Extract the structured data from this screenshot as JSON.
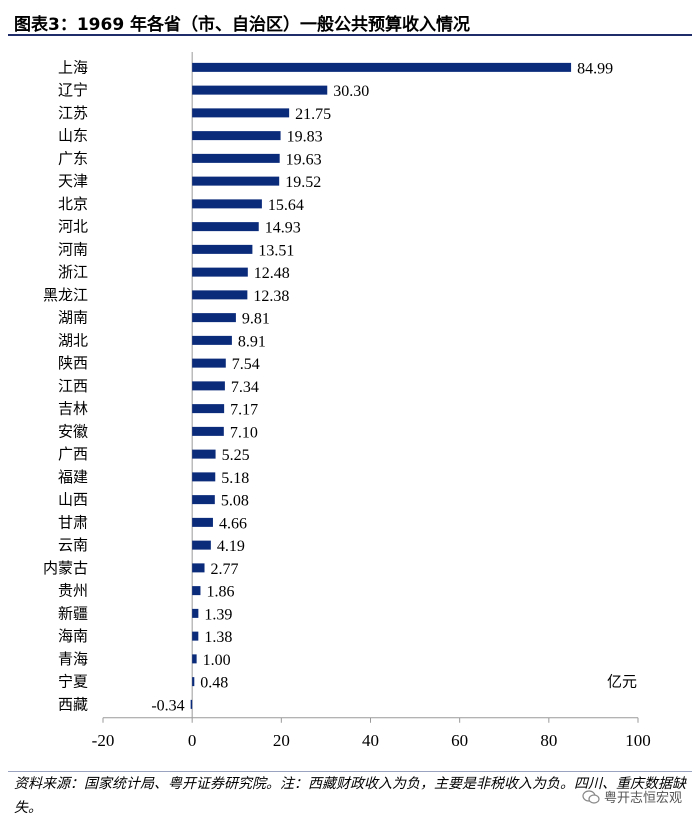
{
  "title": "图表3：1969 年各省（市、自治区）一般公共预算收入情况",
  "source_note": "资料来源：国家统计局、粤开证券研究院。注：西藏财政收入为负，主要是非税收入为负。四川、重庆数据缺失。",
  "watermark": "粤开志恒宏观",
  "chart_data": {
    "type": "bar",
    "orientation": "horizontal",
    "unit_label": "亿元",
    "categories": [
      "上海",
      "辽宁",
      "江苏",
      "山东",
      "广东",
      "天津",
      "北京",
      "河北",
      "河南",
      "浙江",
      "黑龙江",
      "湖南",
      "湖北",
      "陕西",
      "江西",
      "吉林",
      "安徽",
      "广西",
      "福建",
      "山西",
      "甘肃",
      "云南",
      "内蒙古",
      "贵州",
      "新疆",
      "海南",
      "青海",
      "宁夏",
      "西藏"
    ],
    "values": [
      84.99,
      30.3,
      21.75,
      19.83,
      19.63,
      19.52,
      15.64,
      14.93,
      13.51,
      12.48,
      12.38,
      9.81,
      8.91,
      7.54,
      7.34,
      7.17,
      7.1,
      5.25,
      5.18,
      5.08,
      4.66,
      4.19,
      2.77,
      1.86,
      1.39,
      1.38,
      1.0,
      0.48,
      -0.34
    ],
    "value_labels": [
      "84.99",
      "30.30",
      "21.75",
      "19.83",
      "19.63",
      "19.52",
      "15.64",
      "14.93",
      "13.51",
      "12.48",
      "12.38",
      "9.81",
      "8.91",
      "7.54",
      "7.34",
      "7.17",
      "7.10",
      "5.25",
      "5.18",
      "5.08",
      "4.66",
      "4.19",
      "2.77",
      "1.86",
      "1.39",
      "1.38",
      "1.00",
      "0.48",
      "-0.34"
    ],
    "xlim": [
      -20,
      100
    ],
    "xticks": [
      "-20",
      "0",
      "20",
      "40",
      "60",
      "80",
      "100"
    ],
    "bar_color": "#0a2a7a",
    "grid": false
  }
}
